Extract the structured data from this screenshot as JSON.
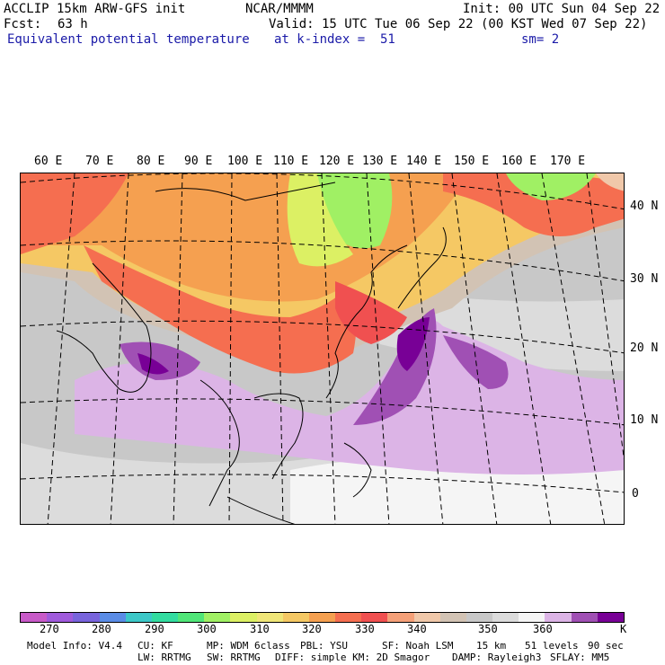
{
  "header": {
    "model": "ACCLIP 15km ARW-GFS init",
    "center": "NCAR/MMMM",
    "init": "Init: 00 UTC Sun 04 Sep 22",
    "fcst_label": "Fcst:",
    "fcst_value": "63 h",
    "valid": "Valid: 15 UTC Tue 06 Sep 22 (00 KST Wed 07 Sep 22)",
    "field": "Equivalent potential temperature",
    "level": "at k-index =  51",
    "smooth": "sm= 2"
  },
  "map": {
    "lon_labels": [
      "60 E",
      "70 E",
      "80 E",
      "90 E",
      "100 E",
      "110 E",
      "120 E",
      "130 E",
      "140 E",
      "150 E",
      "160 E",
      "170 E"
    ],
    "lat_labels": [
      "40 N",
      "30 N",
      "20 N",
      "10 N",
      "0"
    ]
  },
  "colorbar": {
    "colors": [
      "#c85ac8",
      "#a05adc",
      "#7864dc",
      "#5a8ce6",
      "#3cc8c8",
      "#32dca0",
      "#50e678",
      "#a0f064",
      "#dcf064",
      "#f0e678",
      "#f5c864",
      "#f5a050",
      "#f56e50",
      "#f05050",
      "#f5a078",
      "#f0c8aa",
      "#d2c3b4",
      "#c8c8c8",
      "#dcdcdc",
      "#f5f5f5",
      "#dcb4e6",
      "#a050b4",
      "#780096"
    ],
    "ticks": [
      "270",
      "280",
      "290",
      "300",
      "310",
      "320",
      "330",
      "340",
      "350",
      "360"
    ],
    "unit": "K"
  },
  "footer": {
    "line1": {
      "model_info": "Model Info: V4.4",
      "cu": "CU: KF",
      "mp": "MP: WDM 6class",
      "pbl": "PBL: YSU",
      "sf": "SF: Noah LSM",
      "res": "15 km",
      "levels": "51 levels",
      "dt": "90 sec"
    },
    "line2": {
      "lw": "LW: RRTMG",
      "sw": "SW: RRTMG",
      "diff": "DIFF: simple KM: 2D Smagor",
      "damp": "DAMP: Rayleigh3",
      "sflay": "SFLAY: MM5"
    }
  }
}
